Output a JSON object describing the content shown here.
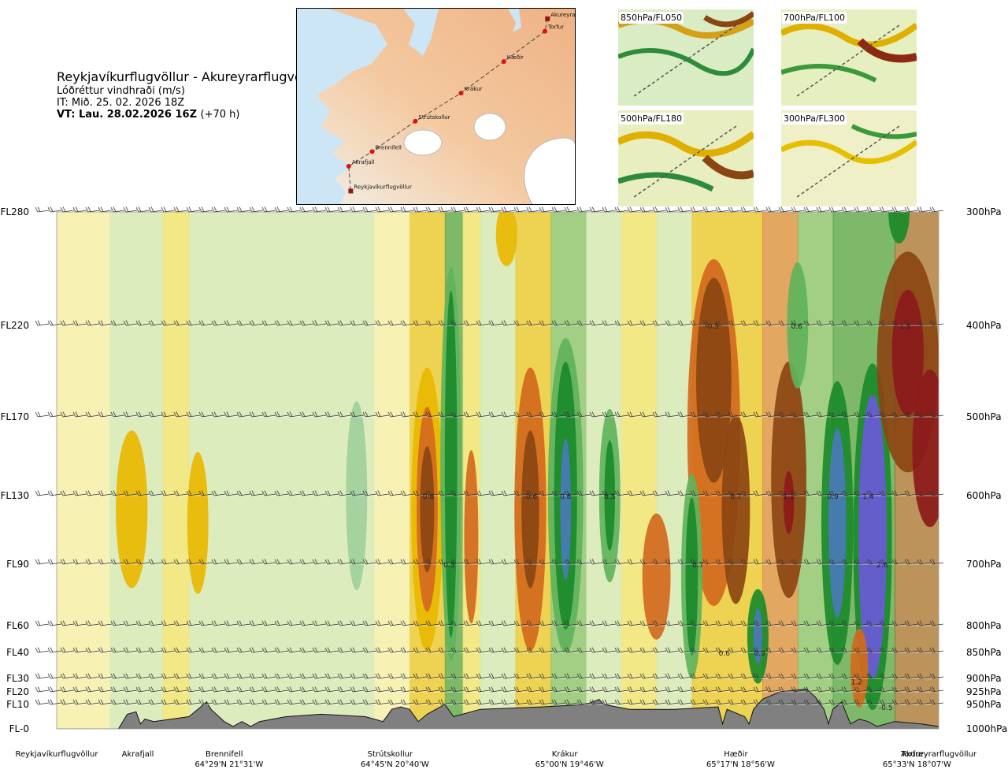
{
  "header": {
    "title": "Reykjavíkurflugvöllur - Akureyrarflugvöllur",
    "subtitle": "Lóðréttur vindhraði (m/s)",
    "it": "IT: Mið. 25. 02. 2026 18Z",
    "vt": "VT: Lau. 28.02.2026 16Z",
    "vt_offset": "(+70 h)"
  },
  "map": {
    "points": [
      {
        "name": "Akureyrarflugvöllur",
        "lon": -18.07,
        "lat": 65.66
      },
      {
        "name": "Torfur",
        "lon": -18.12,
        "lat": 65.55
      },
      {
        "name": "Hæðir",
        "lon": -18.93,
        "lat": 65.28
      },
      {
        "name": "Krákur",
        "lon": -19.77,
        "lat": 65.0
      },
      {
        "name": "Strútskollur",
        "lon": -20.67,
        "lat": 64.75
      },
      {
        "name": "Brennifell",
        "lon": -21.52,
        "lat": 64.48
      },
      {
        "name": "Akrafjall",
        "lon": -21.98,
        "lat": 64.35
      },
      {
        "name": "Reykjavíkurflugvöllur",
        "lon": -21.94,
        "lat": 64.13
      }
    ]
  },
  "thumbs": [
    {
      "label": "850hPa/FL050"
    },
    {
      "label": "700hPa/FL100"
    },
    {
      "label": "500hPa/FL180"
    },
    {
      "label": "300hPa/FL300"
    }
  ],
  "chart_data": {
    "type": "heatmap",
    "title": "Reykjavíkurflugvöllur - Akureyrarflugvöllur",
    "levels": [
      {
        "fl": "FL280",
        "pa": "300hPa",
        "p": 300
      },
      {
        "fl": "FL220",
        "pa": "400hPa",
        "p": 400
      },
      {
        "fl": "FL170",
        "pa": "500hPa",
        "p": 500
      },
      {
        "fl": "FL130",
        "pa": "600hPa",
        "p": 600
      },
      {
        "fl": "FL90",
        "pa": "700hPa",
        "p": 700
      },
      {
        "fl": "FL60",
        "pa": "800hPa",
        "p": 800
      },
      {
        "fl": "FL40",
        "pa": "850hPa",
        "p": 850
      },
      {
        "fl": "FL30",
        "pa": "900hPa",
        "p": 900
      },
      {
        "fl": "FL20",
        "pa": "925hPa",
        "p": 925
      },
      {
        "fl": "FL10",
        "pa": "950hPa",
        "p": 950
      },
      {
        "fl": "FL-0",
        "pa": "1000hPa",
        "p": 1000
      }
    ],
    "stations": [
      {
        "name": "Reykjavíkurflugvöllur",
        "coord": "",
        "frac": 0.0
      },
      {
        "name": "Akrafjall",
        "coord": "",
        "frac": 0.092
      },
      {
        "name": "Brennifell",
        "coord": "64°29'N 21°31'W",
        "frac": 0.19
      },
      {
        "name": "Strútskollur",
        "coord": "64°45'N 20°40'W",
        "frac": 0.378
      },
      {
        "name": "Krákur",
        "coord": "65°00'N 19°46'W",
        "frac": 0.576
      },
      {
        "name": "Hæðir",
        "coord": "65°17'N 18°56'W",
        "frac": 0.77
      },
      {
        "name": "Torfur",
        "coord": "65°33'N 18°07'W",
        "frac": 0.97
      },
      {
        "name": "Akureyrarflugvöllur",
        "coord": "",
        "frac": 1.0
      }
    ],
    "value_labels": [
      {
        "text": "-0.5",
        "frac": 0.743,
        "p": 400
      },
      {
        "text": "0.6",
        "frac": 0.839,
        "p": 400
      },
      {
        "text": "1.1",
        "frac": 0.962,
        "p": 400
      },
      {
        "text": "-0.8",
        "frac": 0.42,
        "p": 600
      },
      {
        "text": "-0.6",
        "frac": 0.537,
        "p": 600
      },
      {
        "text": "0.8",
        "frac": 0.577,
        "p": 600
      },
      {
        "text": "0.5",
        "frac": 0.627,
        "p": 600
      },
      {
        "text": "0.7",
        "frac": 0.77,
        "p": 600
      },
      {
        "text": "1.1",
        "frac": 0.83,
        "p": 600
      },
      {
        "text": "0.9",
        "frac": 0.88,
        "p": 600
      },
      {
        "text": "1.4",
        "frac": 0.92,
        "p": 600
      },
      {
        "text": "0.5",
        "frac": 0.445,
        "p": 700
      },
      {
        "text": "0.7",
        "frac": 0.727,
        "p": 700
      },
      {
        "text": "2.6",
        "frac": 0.936,
        "p": 700
      },
      {
        "text": "0.6",
        "frac": 0.757,
        "p": 850
      },
      {
        "text": "0.9",
        "frac": 0.797,
        "p": 850
      },
      {
        "text": "1.2",
        "frac": 0.907,
        "p": 905
      },
      {
        "text": "-0.5",
        "frac": 0.94,
        "p": 955
      }
    ],
    "colors": {
      "strong_down": "#8b1a1a",
      "down3": "#8b4513",
      "down2": "#d2691e",
      "down1": "#e8b800",
      "weak_down": "#f0e060",
      "neutral": "#f7f2b4",
      "weak_up": "#c9e8c4",
      "up1": "#a0d09c",
      "up2": "#5fb35c",
      "up3": "#1a8a2a",
      "up4": "#4a7ab8",
      "strong_up": "#6a5ad8",
      "terrain": "#808080"
    }
  }
}
